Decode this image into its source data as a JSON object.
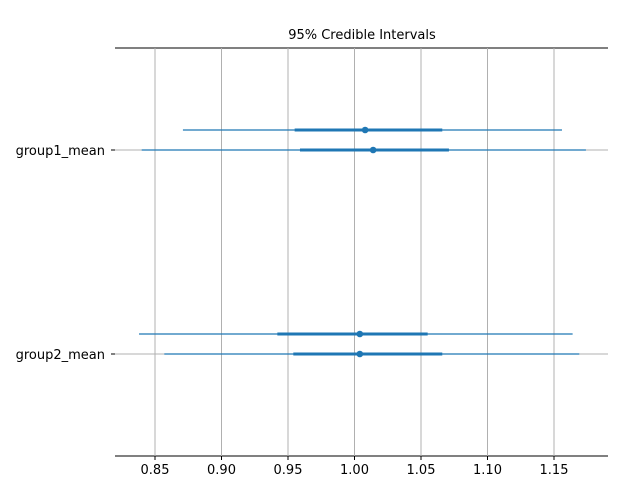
{
  "chart_data": {
    "type": "forest",
    "title": "95% Credible Intervals",
    "xlabel": "",
    "ylabel": "",
    "xlim": [
      0.82,
      1.19
    ],
    "x_ticks": [
      0.85,
      0.9,
      0.95,
      1.0,
      1.05,
      1.1,
      1.15
    ],
    "x_tick_labels": [
      "0.85",
      "0.90",
      "0.95",
      "1.00",
      "1.05",
      "1.10",
      "1.15"
    ],
    "grid": "vertical and horizontal at parameters",
    "color": "#1f77b4",
    "parameters": [
      {
        "label": "group1_mean",
        "chains": [
          {
            "hdi95": [
              0.871,
              1.156
            ],
            "iqr": [
              0.955,
              1.066
            ],
            "point": 1.008
          },
          {
            "hdi95": [
              0.84,
              1.174
            ],
            "iqr": [
              0.959,
              1.071
            ],
            "point": 1.014
          }
        ]
      },
      {
        "label": "group2_mean",
        "chains": [
          {
            "hdi95": [
              0.838,
              1.164
            ],
            "iqr": [
              0.942,
              1.055
            ],
            "point": 1.004
          },
          {
            "hdi95": [
              0.857,
              1.169
            ],
            "iqr": [
              0.954,
              1.066
            ],
            "point": 1.004
          }
        ]
      }
    ]
  }
}
